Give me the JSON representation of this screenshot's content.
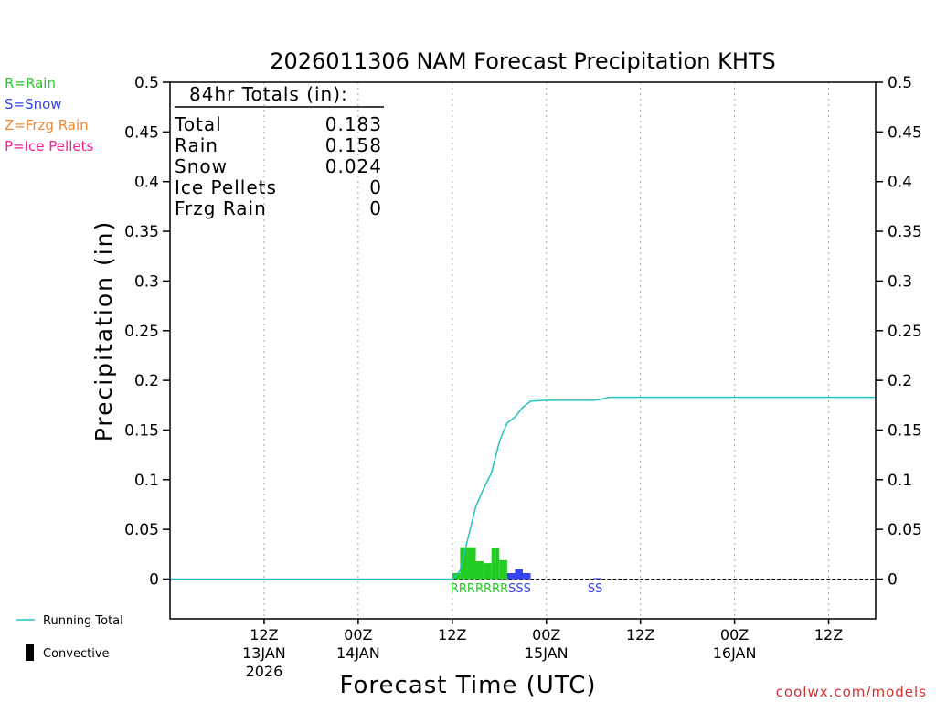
{
  "chart_data": {
    "type": "bar",
    "title": "2026011306 NAM Forecast Precipitation KHTS",
    "xlabel": "Forecast Time (UTC)",
    "ylabel": "Precipitation (in)",
    "ylim": [
      -0.04,
      0.5
    ],
    "y_ticks": [
      0,
      0.05,
      0.1,
      0.15,
      0.2,
      0.25,
      0.3,
      0.35,
      0.4,
      0.45,
      0.5
    ],
    "y_tick_labels": [
      "0",
      "0.05",
      "0.1",
      "0.15",
      "0.2",
      "0.25",
      "0.3",
      "0.35",
      "0.4",
      "0.45",
      "0.5"
    ],
    "x_unit": "forecast hour",
    "xlim": [
      -6,
      84
    ],
    "x_ticks": [
      {
        "hour": 6,
        "line1": "12Z",
        "line2": "13JAN",
        "line3": "2026"
      },
      {
        "hour": 18,
        "line1": "00Z",
        "line2": "14JAN",
        "line3": ""
      },
      {
        "hour": 30,
        "line1": "12Z",
        "line2": "",
        "line3": ""
      },
      {
        "hour": 42,
        "line1": "00Z",
        "line2": "15JAN",
        "line3": ""
      },
      {
        "hour": 54,
        "line1": "12Z",
        "line2": "",
        "line3": ""
      },
      {
        "hour": 66,
        "line1": "00Z",
        "line2": "16JAN",
        "line3": ""
      },
      {
        "hour": 78,
        "line1": "12Z",
        "line2": "",
        "line3": ""
      }
    ],
    "legend_types": [
      {
        "label": "R=Rain",
        "color": "#22cc22"
      },
      {
        "label": "S=Snow",
        "color": "#3344ee"
      },
      {
        "label": "Z=Frzg Rain",
        "color": "#ee8833"
      },
      {
        "label": "P=Ice Pellets",
        "color": "#ee2299"
      }
    ],
    "legend_lines": [
      {
        "label": "Running Total",
        "color": "#22c4c4",
        "kind": "line"
      },
      {
        "label": "Convective",
        "color": "#000000",
        "kind": "bar"
      }
    ],
    "totals": {
      "header": "84hr Totals (in):",
      "rows": [
        {
          "label": "Total",
          "value": "0.183"
        },
        {
          "label": "Rain",
          "value": "0.158"
        },
        {
          "label": "Snow",
          "value": "0.024"
        },
        {
          "label": "Ice Pellets",
          "value": "0"
        },
        {
          "label": "Frzg Rain",
          "value": "0"
        }
      ]
    },
    "series": [
      {
        "name": "Hourly Precipitation",
        "bars": [
          {
            "hour": 31,
            "value": 0.006,
            "ptype": "R"
          },
          {
            "hour": 32,
            "value": 0.032,
            "ptype": "R"
          },
          {
            "hour": 33,
            "value": 0.032,
            "ptype": "R"
          },
          {
            "hour": 34,
            "value": 0.018,
            "ptype": "R"
          },
          {
            "hour": 35,
            "value": 0.016,
            "ptype": "R"
          },
          {
            "hour": 36,
            "value": 0.031,
            "ptype": "R"
          },
          {
            "hour": 37,
            "value": 0.019,
            "ptype": "R"
          },
          {
            "hour": 38,
            "value": 0.006,
            "ptype": "S"
          },
          {
            "hour": 39,
            "value": 0.01,
            "ptype": "S"
          },
          {
            "hour": 40,
            "value": 0.006,
            "ptype": "S"
          },
          {
            "hour": 49,
            "value": 0.001,
            "ptype": "S"
          }
        ]
      },
      {
        "name": "Running Total",
        "color": "#22c4c4",
        "points": [
          [
            -6,
            0
          ],
          [
            24,
            0
          ],
          [
            30,
            0
          ],
          [
            30.5,
            0.003
          ],
          [
            31,
            0.009
          ],
          [
            32,
            0.041
          ],
          [
            33,
            0.073
          ],
          [
            34,
            0.091
          ],
          [
            35,
            0.107
          ],
          [
            36,
            0.138
          ],
          [
            36.5,
            0.148
          ],
          [
            37,
            0.157
          ],
          [
            38,
            0.163
          ],
          [
            38.5,
            0.168
          ],
          [
            39,
            0.173
          ],
          [
            40,
            0.179
          ],
          [
            42,
            0.18
          ],
          [
            44,
            0.18
          ],
          [
            48,
            0.18
          ],
          [
            49,
            0.181
          ],
          [
            50,
            0.183
          ],
          [
            84,
            0.183
          ]
        ]
      }
    ],
    "ptype_labels": [
      {
        "text": "RRRRRRRSSS",
        "color_R": "#22cc22",
        "color_S": "#3344ee",
        "start_hour": 31
      },
      {
        "text": "SS",
        "color_S": "#3344ee",
        "start_hour": 48.5
      }
    ],
    "credit": "coolwx.com/models"
  }
}
